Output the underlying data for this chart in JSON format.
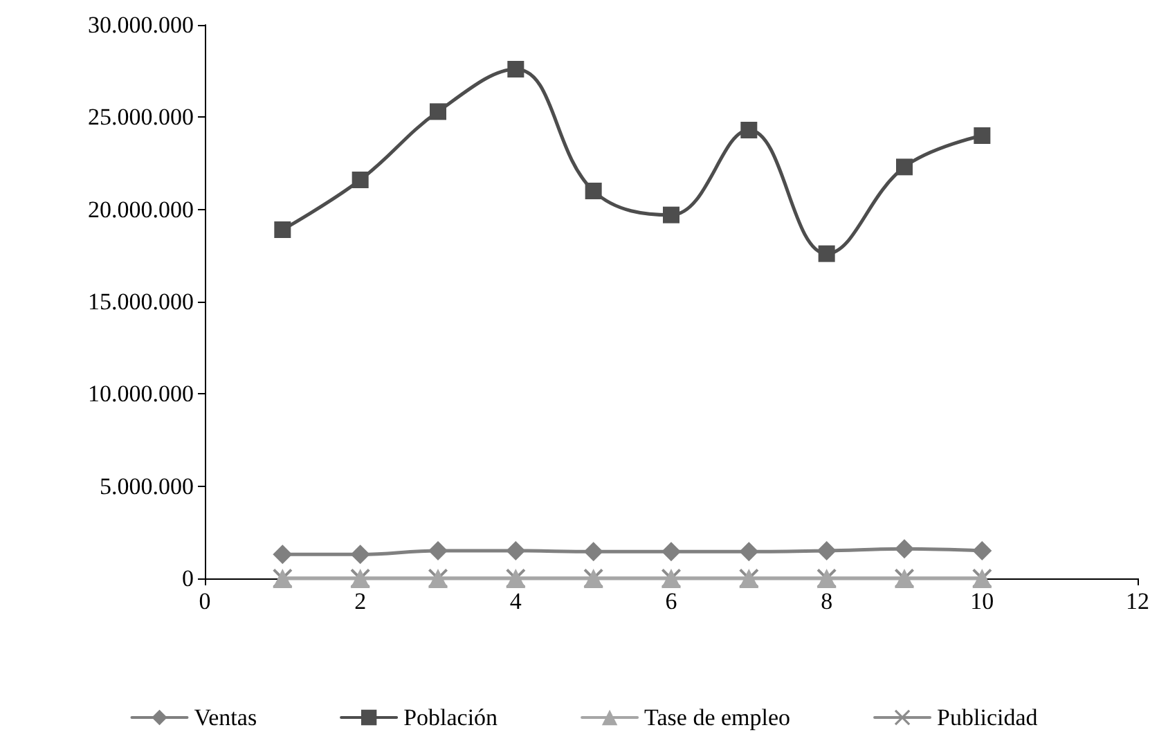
{
  "chart_data": {
    "type": "line",
    "x": [
      1,
      2,
      3,
      4,
      5,
      6,
      7,
      8,
      9,
      10
    ],
    "series": [
      {
        "name": "Ventas",
        "color": "#808080",
        "marker": "diamond",
        "values": [
          1300000,
          1300000,
          1500000,
          1500000,
          1450000,
          1450000,
          1450000,
          1500000,
          1600000,
          1500000
        ]
      },
      {
        "name": "Población",
        "color": "#4d4d4d",
        "marker": "square",
        "values": [
          18900000,
          21600000,
          25300000,
          27600000,
          21000000,
          19700000,
          24300000,
          17600000,
          22300000,
          24000000
        ]
      },
      {
        "name": "Tase de empleo",
        "color": "#a6a6a6",
        "marker": "triangle",
        "values": [
          0,
          0,
          0,
          0,
          0,
          0,
          0,
          0,
          0,
          0
        ]
      },
      {
        "name": "Publicidad",
        "color": "#8c8c8c",
        "marker": "cross",
        "values": [
          0,
          0,
          0,
          0,
          0,
          0,
          0,
          0,
          0,
          0
        ]
      }
    ],
    "xlim": [
      0,
      12
    ],
    "xticks": [
      0,
      2,
      4,
      6,
      8,
      10,
      12
    ],
    "ylim": [
      0,
      30000000
    ],
    "yticks": [
      {
        "value": 0,
        "label": "0"
      },
      {
        "value": 5000000,
        "label": "5.000.000"
      },
      {
        "value": 10000000,
        "label": "10.000.000"
      },
      {
        "value": 15000000,
        "label": "15.000.000"
      },
      {
        "value": 20000000,
        "label": "20.000.000"
      },
      {
        "value": 25000000,
        "label": "25.000.000"
      },
      {
        "value": 30000000,
        "label": "30.000.000"
      }
    ],
    "grid": false,
    "legend": "bottom"
  }
}
